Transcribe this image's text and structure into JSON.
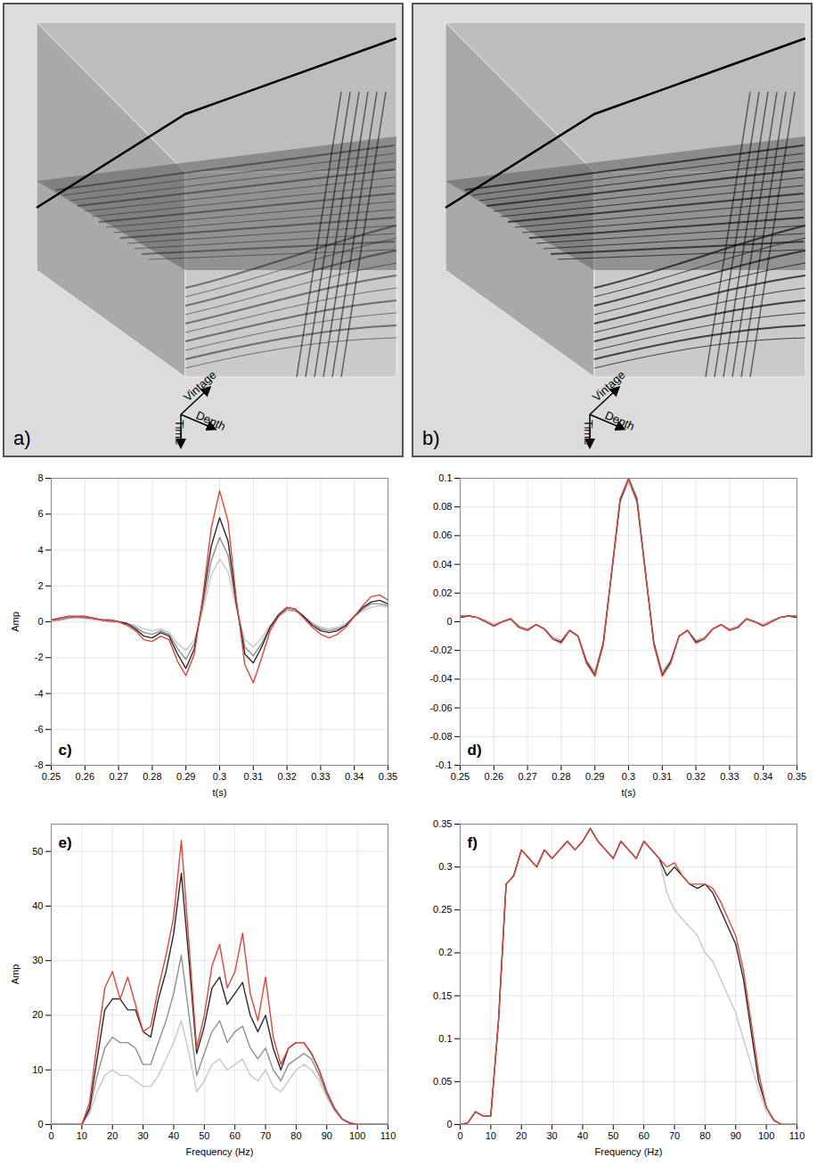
{
  "chart_data": [
    {
      "type": "cube",
      "label": "a)",
      "axes": [
        "Vintage",
        "Time",
        "Depth"
      ]
    },
    {
      "type": "cube",
      "label": "b)",
      "axes": [
        "Vintage",
        "Time",
        "Depth"
      ]
    },
    {
      "type": "line",
      "label": "c)",
      "xlabel": "t(s)",
      "ylabel": "Amp",
      "grid": true,
      "xlim": [
        0.25,
        0.35
      ],
      "xticks": [
        0.25,
        0.26,
        0.27,
        0.28,
        0.29,
        0.3,
        0.31,
        0.32,
        0.33,
        0.34,
        0.35
      ],
      "ylim": [
        -8,
        8
      ],
      "yticks": [
        -8,
        -6,
        -4,
        -2,
        0,
        2,
        4,
        6,
        8
      ],
      "x": [
        0.25,
        0.2525,
        0.255,
        0.2575,
        0.26,
        0.2625,
        0.265,
        0.2675,
        0.27,
        0.2725,
        0.275,
        0.2775,
        0.28,
        0.2825,
        0.285,
        0.2875,
        0.29,
        0.2925,
        0.295,
        0.2975,
        0.3,
        0.3025,
        0.305,
        0.3075,
        0.31,
        0.3125,
        0.315,
        0.3175,
        0.32,
        0.3225,
        0.325,
        0.3275,
        0.33,
        0.3325,
        0.335,
        0.3375,
        0.34,
        0.3425,
        0.345,
        0.3475,
        0.35
      ],
      "series": [
        {
          "color": "#c8c8c8",
          "values": [
            0.0,
            0.1,
            0.2,
            0.2,
            0.2,
            0.1,
            0.1,
            0.0,
            0.0,
            -0.1,
            -0.2,
            -0.4,
            -0.5,
            -0.4,
            -0.6,
            -1.2,
            -1.6,
            -1.0,
            0.6,
            2.6,
            3.5,
            2.8,
            0.7,
            -1.0,
            -1.4,
            -0.9,
            -0.2,
            0.3,
            0.6,
            0.6,
            0.3,
            -0.1,
            -0.3,
            -0.4,
            -0.3,
            -0.1,
            0.3,
            0.6,
            0.8,
            0.9,
            0.8
          ]
        },
        {
          "color": "#8f8f8f",
          "values": [
            0.1,
            0.1,
            0.2,
            0.3,
            0.2,
            0.2,
            0.1,
            0.0,
            0.0,
            -0.1,
            -0.3,
            -0.6,
            -0.7,
            -0.5,
            -0.7,
            -1.5,
            -2.1,
            -1.2,
            0.9,
            3.4,
            4.7,
            3.7,
            0.9,
            -1.4,
            -1.9,
            -1.2,
            -0.3,
            0.3,
            0.7,
            0.6,
            0.3,
            -0.1,
            -0.4,
            -0.5,
            -0.4,
            -0.2,
            0.3,
            0.7,
            1.0,
            1.0,
            0.9
          ]
        },
        {
          "color": "#2b2b2b",
          "values": [
            0.1,
            0.2,
            0.3,
            0.3,
            0.3,
            0.2,
            0.1,
            0.1,
            0.0,
            -0.1,
            -0.4,
            -0.8,
            -0.9,
            -0.6,
            -0.8,
            -1.8,
            -2.6,
            -1.5,
            1.2,
            4.2,
            5.8,
            4.5,
            1.0,
            -1.8,
            -2.3,
            -1.4,
            -0.3,
            0.4,
            0.8,
            0.7,
            0.3,
            -0.2,
            -0.5,
            -0.6,
            -0.5,
            -0.2,
            0.3,
            0.8,
            1.1,
            1.2,
            1.0
          ]
        },
        {
          "color": "#e0463c",
          "values": [
            0.1,
            0.2,
            0.3,
            0.3,
            0.3,
            0.2,
            0.1,
            0.1,
            0.0,
            -0.2,
            -0.5,
            -1.0,
            -1.1,
            -0.8,
            -1.0,
            -2.2,
            -3.0,
            -1.8,
            1.4,
            5.2,
            7.3,
            5.6,
            1.2,
            -2.4,
            -3.4,
            -2.0,
            -0.5,
            0.3,
            0.8,
            0.7,
            0.2,
            -0.3,
            -0.7,
            -0.9,
            -0.7,
            -0.3,
            0.3,
            0.9,
            1.4,
            1.5,
            1.2
          ]
        }
      ]
    },
    {
      "type": "line",
      "label": "d)",
      "xlabel": "t(s)",
      "grid": true,
      "xlim": [
        0.25,
        0.35
      ],
      "xticks": [
        0.25,
        0.26,
        0.27,
        0.28,
        0.29,
        0.3,
        0.31,
        0.32,
        0.33,
        0.34,
        0.35
      ],
      "ylim": [
        -0.1,
        0.1
      ],
      "yticks": [
        -0.1,
        -0.08,
        -0.06,
        -0.04,
        -0.02,
        0,
        0.02,
        0.04,
        0.06,
        0.08,
        0.1
      ],
      "x": [
        0.25,
        0.2525,
        0.255,
        0.2575,
        0.26,
        0.2625,
        0.265,
        0.2675,
        0.27,
        0.2725,
        0.275,
        0.2775,
        0.28,
        0.2825,
        0.285,
        0.2875,
        0.29,
        0.2925,
        0.295,
        0.2975,
        0.3,
        0.3025,
        0.305,
        0.3075,
        0.31,
        0.3125,
        0.315,
        0.3175,
        0.32,
        0.3225,
        0.325,
        0.3275,
        0.33,
        0.3325,
        0.335,
        0.3375,
        0.34,
        0.3425,
        0.345,
        0.3475,
        0.35
      ],
      "series": [
        {
          "color": "#a8a8a8",
          "values": [
            0.003,
            0.004,
            0.003,
            0.001,
            -0.002,
            0.0,
            0.002,
            -0.003,
            -0.005,
            -0.002,
            -0.005,
            -0.011,
            -0.013,
            -0.006,
            -0.01,
            -0.027,
            -0.035,
            -0.014,
            0.034,
            0.083,
            0.098,
            0.083,
            0.034,
            -0.014,
            -0.035,
            -0.027,
            -0.01,
            -0.006,
            -0.013,
            -0.011,
            -0.005,
            -0.002,
            -0.005,
            -0.003,
            0.002,
            0.0,
            -0.002,
            0.001,
            0.003,
            0.004,
            0.003
          ]
        },
        {
          "color": "#2b2b2b",
          "values": [
            0.003,
            0.004,
            0.003,
            0.0,
            -0.003,
            0.0,
            0.002,
            -0.004,
            -0.006,
            -0.002,
            -0.005,
            -0.012,
            -0.014,
            -0.006,
            -0.01,
            -0.028,
            -0.037,
            -0.015,
            0.035,
            0.085,
            0.1,
            0.085,
            0.035,
            -0.015,
            -0.037,
            -0.028,
            -0.01,
            -0.006,
            -0.014,
            -0.012,
            -0.005,
            -0.002,
            -0.006,
            -0.004,
            0.002,
            0.0,
            -0.003,
            0.0,
            0.003,
            0.004,
            0.003
          ]
        },
        {
          "color": "#e0463c",
          "values": [
            0.004,
            0.004,
            0.003,
            0.0,
            -0.003,
            0.0,
            0.002,
            -0.004,
            -0.006,
            -0.002,
            -0.005,
            -0.012,
            -0.015,
            -0.006,
            -0.01,
            -0.029,
            -0.038,
            -0.016,
            0.035,
            0.086,
            0.1,
            0.086,
            0.035,
            -0.016,
            -0.038,
            -0.029,
            -0.01,
            -0.006,
            -0.015,
            -0.012,
            -0.005,
            -0.002,
            -0.006,
            -0.004,
            0.002,
            0.0,
            -0.003,
            0.0,
            0.003,
            0.004,
            0.004
          ]
        }
      ]
    },
    {
      "type": "line",
      "label": "e)",
      "xlabel": "Frequency (Hz)",
      "ylabel": "Amp",
      "grid": true,
      "xlim": [
        0,
        110
      ],
      "xticks": [
        0,
        10,
        20,
        30,
        40,
        50,
        60,
        70,
        80,
        90,
        100,
        110
      ],
      "ylim": [
        0,
        55
      ],
      "yticks": [
        0,
        10,
        20,
        30,
        40,
        50
      ],
      "x": [
        0,
        2.5,
        5,
        7.5,
        10,
        12.5,
        15,
        17.5,
        20,
        22.5,
        25,
        27.5,
        30,
        32.5,
        35,
        37.5,
        40,
        42.5,
        45,
        47.5,
        50,
        52.5,
        55,
        57.5,
        60,
        62.5,
        65,
        67.5,
        70,
        72.5,
        75,
        77.5,
        80,
        82.5,
        85,
        87.5,
        90,
        92.5,
        95,
        97.5,
        100,
        102.5,
        105,
        107.5,
        110
      ],
      "series": [
        {
          "color": "#c8c8c8",
          "values": [
            0,
            0,
            0,
            0,
            0,
            2,
            6,
            9,
            10,
            9,
            9,
            8,
            7,
            7,
            9,
            12,
            15,
            19,
            13,
            6,
            8,
            11,
            12,
            10,
            11,
            12,
            9,
            8,
            10,
            7,
            6,
            8,
            10,
            11,
            10,
            8,
            5,
            2.5,
            1,
            0.2,
            0,
            0,
            0,
            0,
            0
          ]
        },
        {
          "color": "#8f8f8f",
          "values": [
            0,
            0,
            0,
            0,
            0,
            2.5,
            9,
            14,
            16,
            15,
            15,
            14,
            11,
            11,
            15,
            19,
            24,
            31,
            20,
            9,
            13,
            17,
            19,
            15,
            17,
            18,
            14,
            12,
            14,
            10,
            8,
            11,
            12,
            13,
            12,
            9,
            5.5,
            2.8,
            1,
            0.2,
            0,
            0,
            0,
            0,
            0
          ]
        },
        {
          "color": "#2b2b2b",
          "values": [
            0,
            0,
            0,
            0,
            0,
            3,
            12,
            21,
            23,
            23,
            21,
            21,
            17,
            16,
            23,
            28,
            35,
            46,
            30,
            13,
            18,
            25,
            27,
            22,
            24,
            26,
            20,
            17,
            20,
            14,
            10,
            14,
            15,
            15,
            13,
            10,
            6,
            3,
            1,
            0.3,
            0,
            0,
            0,
            0,
            0
          ]
        },
        {
          "color": "#e0463c",
          "values": [
            0,
            0,
            0,
            0,
            0,
            4,
            15,
            25,
            28,
            23,
            27,
            22,
            17,
            18,
            25,
            31,
            38,
            52,
            33,
            14,
            20,
            29,
            33,
            25,
            28,
            35,
            24,
            19,
            27,
            16,
            11,
            14,
            15,
            15,
            13,
            10,
            6,
            3,
            1,
            0.3,
            0,
            0,
            0,
            0,
            0
          ]
        }
      ]
    },
    {
      "type": "line",
      "label": "f)",
      "xlabel": "Frequency (Hz)",
      "grid": true,
      "xlim": [
        0,
        110
      ],
      "xticks": [
        0,
        10,
        20,
        30,
        40,
        50,
        60,
        70,
        80,
        90,
        100,
        110
      ],
      "ylim": [
        0,
        0.35
      ],
      "yticks": [
        0,
        0.05,
        0.1,
        0.15,
        0.2,
        0.25,
        0.3,
        0.35
      ],
      "x": [
        0,
        2.5,
        5,
        7.5,
        10,
        12.5,
        15,
        17.5,
        20,
        22.5,
        25,
        27.5,
        30,
        32.5,
        35,
        37.5,
        40,
        42.5,
        45,
        47.5,
        50,
        52.5,
        55,
        57.5,
        60,
        62.5,
        65,
        67.5,
        70,
        72.5,
        75,
        77.5,
        80,
        82.5,
        85,
        87.5,
        90,
        92.5,
        95,
        97.5,
        100,
        102.5,
        105,
        107.5,
        110
      ],
      "series": [
        {
          "color": "#c8c8c8",
          "values": [
            0,
            0.002,
            0.015,
            0.01,
            0.01,
            0.12,
            0.28,
            0.29,
            0.32,
            0.31,
            0.3,
            0.32,
            0.31,
            0.32,
            0.33,
            0.32,
            0.33,
            0.345,
            0.33,
            0.32,
            0.31,
            0.33,
            0.32,
            0.31,
            0.33,
            0.32,
            0.31,
            0.27,
            0.25,
            0.24,
            0.23,
            0.22,
            0.2,
            0.19,
            0.17,
            0.15,
            0.13,
            0.1,
            0.07,
            0.04,
            0.015,
            0.004,
            0,
            0,
            0
          ]
        },
        {
          "color": "#2b2b2b",
          "values": [
            0,
            0.002,
            0.015,
            0.01,
            0.01,
            0.12,
            0.28,
            0.29,
            0.32,
            0.31,
            0.3,
            0.32,
            0.31,
            0.32,
            0.33,
            0.32,
            0.33,
            0.345,
            0.33,
            0.32,
            0.31,
            0.33,
            0.32,
            0.31,
            0.33,
            0.32,
            0.31,
            0.29,
            0.3,
            0.29,
            0.28,
            0.275,
            0.28,
            0.27,
            0.25,
            0.23,
            0.21,
            0.17,
            0.11,
            0.05,
            0.02,
            0.005,
            0,
            0,
            0
          ]
        },
        {
          "color": "#e0463c",
          "values": [
            0,
            0.002,
            0.015,
            0.01,
            0.01,
            0.12,
            0.28,
            0.29,
            0.32,
            0.31,
            0.3,
            0.32,
            0.31,
            0.32,
            0.33,
            0.32,
            0.33,
            0.345,
            0.33,
            0.32,
            0.31,
            0.33,
            0.32,
            0.31,
            0.33,
            0.32,
            0.31,
            0.3,
            0.305,
            0.29,
            0.28,
            0.28,
            0.28,
            0.275,
            0.26,
            0.24,
            0.22,
            0.18,
            0.12,
            0.06,
            0.02,
            0.005,
            0,
            0,
            0
          ]
        }
      ]
    }
  ]
}
